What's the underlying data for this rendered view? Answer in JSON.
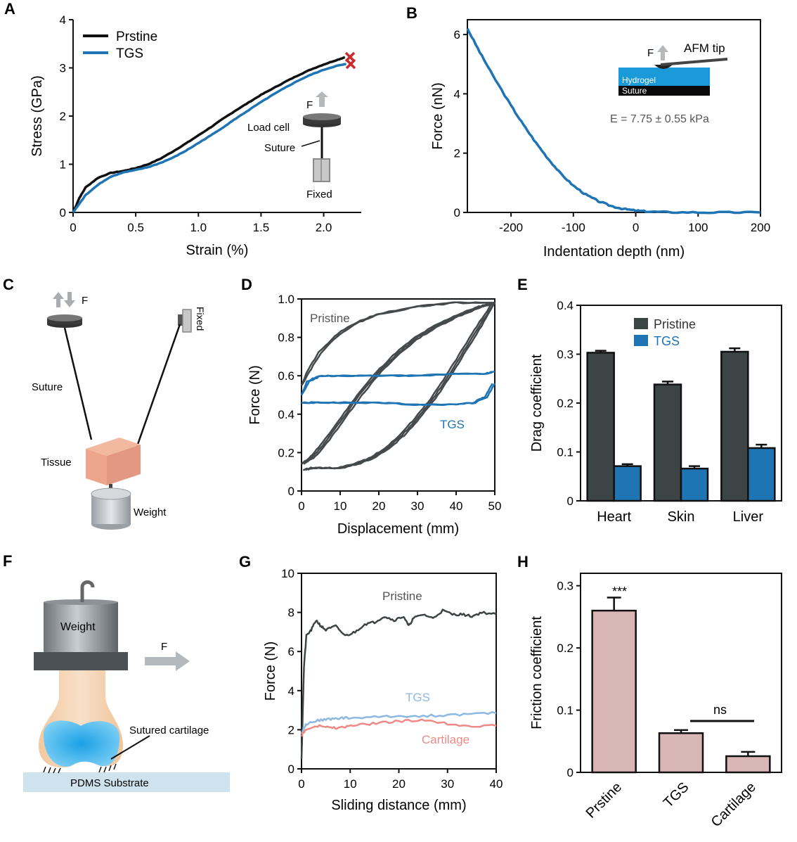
{
  "colors": {
    "pristine_black": "#111111",
    "pristine_gray": "#444a4c",
    "tgs_blue": "#1f74b4",
    "tgs_light_blue": "#8db8e2",
    "cartilage_pink": "#ee8a86",
    "bar_dark": "#3d4446",
    "bar_pink": "#d8b6b6",
    "break_marker": "#cc2a2a",
    "hydrogel": "#1a9ad8"
  },
  "panels": {
    "A": {
      "label": "A",
      "schematic": {
        "force": "F",
        "load_cell": "Load cell",
        "suture": "Suture",
        "fixed": "Fixed"
      }
    },
    "B": {
      "label": "B",
      "schematic": {
        "force": "F",
        "tip": "AFM tip",
        "hydrogel": "Hydrogel",
        "suture": "Suture"
      },
      "annotation": "E = 7.75 ± 0.55 kPa"
    },
    "C": {
      "label": "C",
      "schematic": {
        "force": "F",
        "fixed": "Fixed",
        "suture": "Suture",
        "tissue": "Tissue",
        "weight": "Weight"
      }
    },
    "D": {
      "label": "D"
    },
    "E": {
      "label": "E"
    },
    "F": {
      "label": "F",
      "schematic": {
        "weight": "Weight",
        "force": "F",
        "cartilage": "Sutured cartilage",
        "substrate": "PDMS Substrate"
      }
    },
    "G": {
      "label": "G"
    },
    "H": {
      "label": "H"
    }
  },
  "chart_data": [
    {
      "panel": "A",
      "type": "line",
      "xlabel": "Strain (%)",
      "ylabel": "Stress (GPa)",
      "xlim": [
        0,
        2.3
      ],
      "ylim": [
        0,
        4
      ],
      "xticks": [
        "0",
        "0.5",
        "1.0",
        "1.5",
        "2.0"
      ],
      "yticks": [
        "0",
        "1",
        "2",
        "3",
        "4"
      ],
      "legend": "top-left",
      "series": [
        {
          "name": "Prstine",
          "color": "#111111",
          "x": [
            0,
            0.05,
            0.1,
            0.2,
            0.3,
            0.4,
            0.5,
            0.6,
            0.7,
            0.8,
            0.9,
            1.0,
            1.1,
            1.2,
            1.3,
            1.4,
            1.5,
            1.6,
            1.7,
            1.8,
            1.9,
            2.0,
            2.1,
            2.17
          ],
          "y": [
            0,
            0.3,
            0.52,
            0.72,
            0.82,
            0.86,
            0.92,
            1.0,
            1.12,
            1.27,
            1.43,
            1.6,
            1.77,
            1.95,
            2.12,
            2.28,
            2.44,
            2.58,
            2.72,
            2.85,
            2.97,
            3.07,
            3.16,
            3.22
          ]
        },
        {
          "name": "TGS",
          "color": "#1f74b4",
          "x": [
            0,
            0.05,
            0.1,
            0.2,
            0.3,
            0.4,
            0.5,
            0.6,
            0.7,
            0.8,
            0.9,
            1.0,
            1.1,
            1.2,
            1.3,
            1.4,
            1.5,
            1.6,
            1.7,
            1.8,
            1.9,
            2.0,
            2.1,
            2.18
          ],
          "y": [
            0,
            0.18,
            0.36,
            0.58,
            0.74,
            0.83,
            0.88,
            0.94,
            1.03,
            1.14,
            1.28,
            1.44,
            1.6,
            1.77,
            1.95,
            2.12,
            2.29,
            2.45,
            2.6,
            2.74,
            2.86,
            2.96,
            3.04,
            3.08
          ]
        }
      ]
    },
    {
      "panel": "B",
      "type": "line",
      "xlabel": "Indentation depth (nm)",
      "ylabel": "Force (nN)",
      "xlim": [
        -270,
        200
      ],
      "ylim": [
        0,
        6.5
      ],
      "xticks": [
        "-200",
        "-100",
        "0",
        "100",
        "200"
      ],
      "yticks": [
        "0",
        "2",
        "4",
        "6"
      ],
      "series": [
        {
          "color": "#1f74b4",
          "x": [
            -270,
            -250,
            -230,
            -200,
            -180,
            -160,
            -140,
            -120,
            -100,
            -80,
            -60,
            -40,
            -20,
            0,
            20,
            50,
            100,
            150,
            200
          ],
          "y": [
            6.2,
            5.4,
            4.65,
            3.6,
            2.95,
            2.35,
            1.8,
            1.3,
            0.9,
            0.6,
            0.38,
            0.22,
            0.12,
            0.06,
            0.03,
            0.01,
            0.0,
            0.0,
            0.0
          ]
        }
      ]
    },
    {
      "panel": "D",
      "type": "line",
      "xlabel": "Displacement (mm)",
      "ylabel": "Force (N)",
      "xlim": [
        0,
        50
      ],
      "ylim": [
        0,
        1.0
      ],
      "xticks": [
        "0",
        "10",
        "20",
        "30",
        "40",
        "50"
      ],
      "yticks": [
        "0",
        "0.2",
        "0.4",
        "0.6",
        "0.8",
        "1.0"
      ],
      "annotations": [
        "Pristine",
        "TGS"
      ],
      "series": [
        {
          "name": "Pristine loading",
          "color": "#444a4c",
          "x": [
            0,
            3,
            6,
            10,
            15,
            20,
            25,
            30,
            35,
            40,
            45,
            48,
            50
          ],
          "y": [
            0.14,
            0.18,
            0.25,
            0.36,
            0.5,
            0.62,
            0.72,
            0.8,
            0.86,
            0.91,
            0.95,
            0.97,
            0.98
          ]
        },
        {
          "name": "Pristine unloading",
          "color": "#444a4c",
          "x": [
            50,
            46,
            42,
            38,
            34,
            30,
            26,
            22,
            18,
            14,
            10,
            6,
            3,
            1
          ],
          "y": [
            0.98,
            0.86,
            0.73,
            0.6,
            0.48,
            0.38,
            0.29,
            0.22,
            0.17,
            0.14,
            0.12,
            0.12,
            0.12,
            0.11
          ]
        },
        {
          "name": "Pristine first loading",
          "color": "#444a4c",
          "x": [
            0,
            2,
            5,
            10,
            15,
            20,
            30,
            40,
            50
          ],
          "y": [
            0.55,
            0.62,
            0.72,
            0.82,
            0.88,
            0.92,
            0.96,
            0.98,
            0.98
          ]
        },
        {
          "name": "TGS loading",
          "color": "#1f74b4",
          "x": [
            0,
            2,
            5,
            10,
            20,
            30,
            40,
            48,
            50
          ],
          "y": [
            0.5,
            0.57,
            0.6,
            0.6,
            0.6,
            0.6,
            0.61,
            0.61,
            0.62
          ]
        },
        {
          "name": "TGS unloading",
          "color": "#1f74b4",
          "x": [
            50,
            48,
            45,
            40,
            30,
            20,
            10,
            3,
            0
          ],
          "y": [
            0.56,
            0.49,
            0.46,
            0.45,
            0.45,
            0.46,
            0.46,
            0.46,
            0.46
          ]
        }
      ]
    },
    {
      "panel": "E",
      "type": "bar",
      "ylabel": "Drag coefficient",
      "ylim": [
        0,
        0.4
      ],
      "yticks": [
        "0",
        "0.1",
        "0.2",
        "0.3",
        "0.4"
      ],
      "categories": [
        "Heart",
        "Skin",
        "Liver"
      ],
      "legend": "top-center",
      "series": [
        {
          "name": "Pristine",
          "color": "#3d4446",
          "values": [
            0.303,
            0.238,
            0.305
          ],
          "errors": [
            0.004,
            0.006,
            0.007
          ]
        },
        {
          "name": "TGS",
          "color": "#1f74b4",
          "values": [
            0.071,
            0.066,
            0.108
          ],
          "errors": [
            0.004,
            0.005,
            0.007
          ]
        }
      ]
    },
    {
      "panel": "G",
      "type": "line",
      "xlabel": "Sliding distance (mm)",
      "ylabel": "Force (N)",
      "xlim": [
        0,
        40
      ],
      "ylim": [
        0,
        10
      ],
      "xticks": [
        "0",
        "10",
        "20",
        "30",
        "40"
      ],
      "yticks": [
        "0",
        "2",
        "4",
        "6",
        "8",
        "10"
      ],
      "series": [
        {
          "name": "Pristine",
          "color": "#3d4446",
          "x": [
            0,
            0.5,
            1,
            2,
            3,
            4,
            5,
            7,
            9,
            11,
            13,
            15,
            17,
            19,
            21,
            22,
            23,
            25,
            27,
            29,
            31,
            33,
            35,
            37,
            40
          ],
          "y": [
            0.5,
            5.2,
            6.8,
            7.1,
            7.6,
            7.3,
            7.1,
            7.3,
            6.8,
            7.0,
            7.4,
            7.5,
            7.8,
            7.6,
            7.8,
            7.3,
            7.7,
            7.9,
            7.7,
            8.1,
            7.9,
            7.9,
            7.8,
            8.0,
            7.9
          ]
        },
        {
          "name": "TGS",
          "color": "#8db8e2",
          "x": [
            0,
            0.5,
            1,
            2,
            4,
            6,
            8,
            10,
            15,
            20,
            25,
            30,
            35,
            40
          ],
          "y": [
            1.8,
            2.1,
            2.3,
            2.4,
            2.5,
            2.55,
            2.6,
            2.6,
            2.65,
            2.7,
            2.7,
            2.75,
            2.8,
            2.85
          ]
        },
        {
          "name": "Cartilage",
          "color": "#ee8a86",
          "x": [
            0,
            0.5,
            1,
            2,
            4,
            6,
            8,
            10,
            14,
            18,
            22,
            26,
            30,
            35,
            40
          ],
          "y": [
            1.7,
            1.9,
            2.0,
            2.1,
            2.2,
            2.1,
            2.1,
            2.2,
            2.3,
            2.4,
            2.45,
            2.5,
            2.3,
            2.2,
            2.2
          ]
        }
      ]
    },
    {
      "panel": "H",
      "type": "bar",
      "ylabel": "Friction coefficient",
      "ylim": [
        0,
        0.32
      ],
      "yticks": [
        "0",
        "0.1",
        "0.2",
        "0.3"
      ],
      "categories": [
        "Prstine",
        "TGS",
        "Cartilage"
      ],
      "series": [
        {
          "color": "#d8b6b6",
          "values": [
            0.26,
            0.063,
            0.026
          ],
          "errors": [
            0.021,
            0.005,
            0.007
          ]
        }
      ],
      "annotations": {
        "significance": "***",
        "ns": "ns"
      }
    }
  ]
}
